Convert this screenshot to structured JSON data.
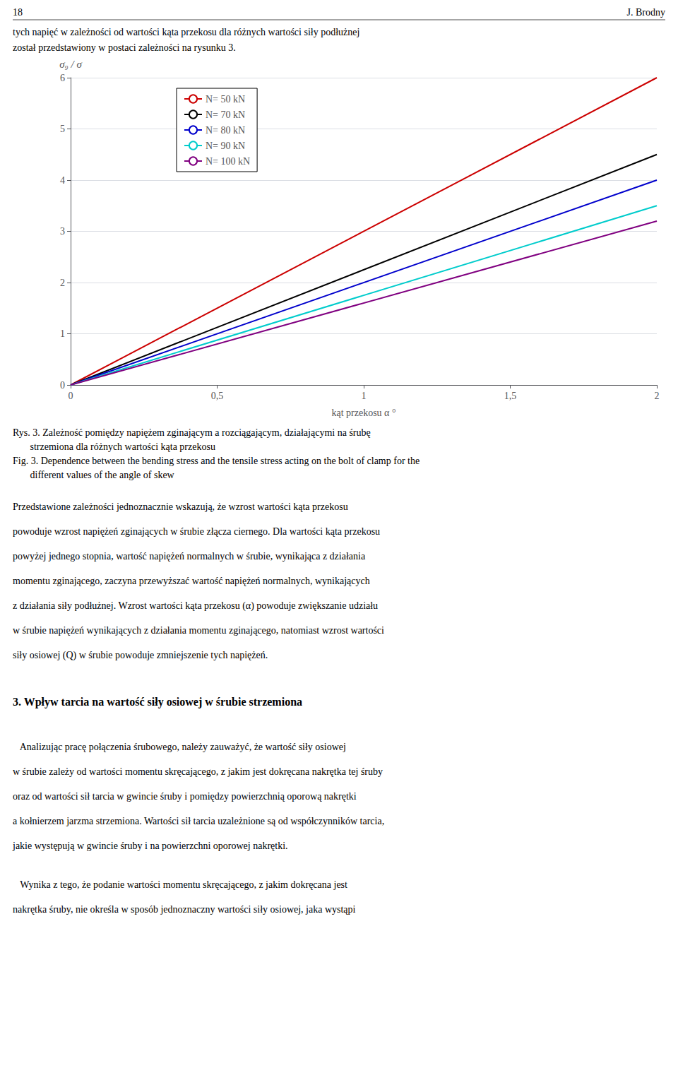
{
  "chart_data": {
    "type": "line",
    "x": [
      0,
      2
    ],
    "xlabel": "kąt przekosu α °",
    "ylabel": "σ₉ / σ",
    "xlim": [
      0,
      2
    ],
    "ylim": [
      0,
      6
    ],
    "xticks": [
      0,
      {
        "value": 0.5,
        "label": "0,5"
      },
      1,
      {
        "value": 1.5,
        "label": "1,5"
      },
      2
    ],
    "yticks": [
      0,
      1,
      2,
      3,
      4,
      5,
      6
    ],
    "grid": true,
    "legend": "upper left",
    "series": [
      {
        "name": "N= 50 kN",
        "color": "#cc0000",
        "values": [
          0,
          6
        ]
      },
      {
        "name": "N= 70 kN",
        "color": "#000000",
        "values": [
          0,
          4.5
        ]
      },
      {
        "name": "N= 80 kN",
        "color": "#0000cc",
        "values": [
          0,
          4
        ]
      },
      {
        "name": "N= 90 kN",
        "color": "#00cccc",
        "values": [
          0,
          3.5
        ]
      },
      {
        "name": "N= 100 kN",
        "color": "#800080",
        "values": [
          0,
          3.2
        ]
      }
    ],
    "annotations": [
      "18",
      "J. Brodny",
      "tych napięć w zależności od wartości kąta przekosu dla różnych wartości siły podłużnej",
      "został przedstawiony w postaci zależności na rysunku 3.",
      "Rys. 3. Zależność pomiędzy napiężem zginającym a rozciągającym, działającymi na śrubę",
      "       strzemiona dla różnych wartości kąta przekosu",
      "Fig. 3. Dependence between the bending stress and the tensile stress acting on the bolt of clamp for the",
      "       different values of the angle of skew",
      "Przedstawione zależności jednoznacznie wskazują, że wzrost wartości kąta przekosu",
      "powoduje wzrost napiężeń zginających w śrubie złącza ciernego. Dla wartości kąta przekosu",
      "powyżej jednego stopnia, wartość napiężeń normalnych w śrubie, wynikająca z działania",
      "momentu zginającego, zaczyna przewyższać wartość napiężeń normalnych, wynikających",
      "z działania siły podłużnej. Wzrost wartości kąta przekosu (α) powoduje zwiększanie udziału",
      "w śrubie napiężeń wynikających z działania momentu zginającego, natomiast wzrost wartości",
      "siły osiowej (Q) w śrubie powoduje zmniejszenie tych napiężeń.",
      "3. Wpływ tarcia na wartość siły osiowej w śrubie strzemiona",
      "   Analizując pracę połączenia śrubowego, należy zauważyć, że wartość siły osiowej",
      "w śrubie zależy od wartości momentu skręcającego, z jakim jest dokręcana nakrętka tej śruby",
      "oraz od wartości sił tarcia w gwincie śruby i pomiędzy powierzchnią oporową nakrętki",
      "a kołnierzem jarzma strzemiona. Wartości sił tarcia uzależnione są od współczynników tarcia,",
      "jakie występują w gwincie śruby i na powierzchni oporowej nakrętki.",
      "   Wynika z tego, że podanie wartości momentu skręcającego, z jakim dokręcana jest",
      "nakrętka śruby, nie określa w sposób jednoznaczny wartości siły osiowej, jaka wystąpi"
    ]
  }
}
